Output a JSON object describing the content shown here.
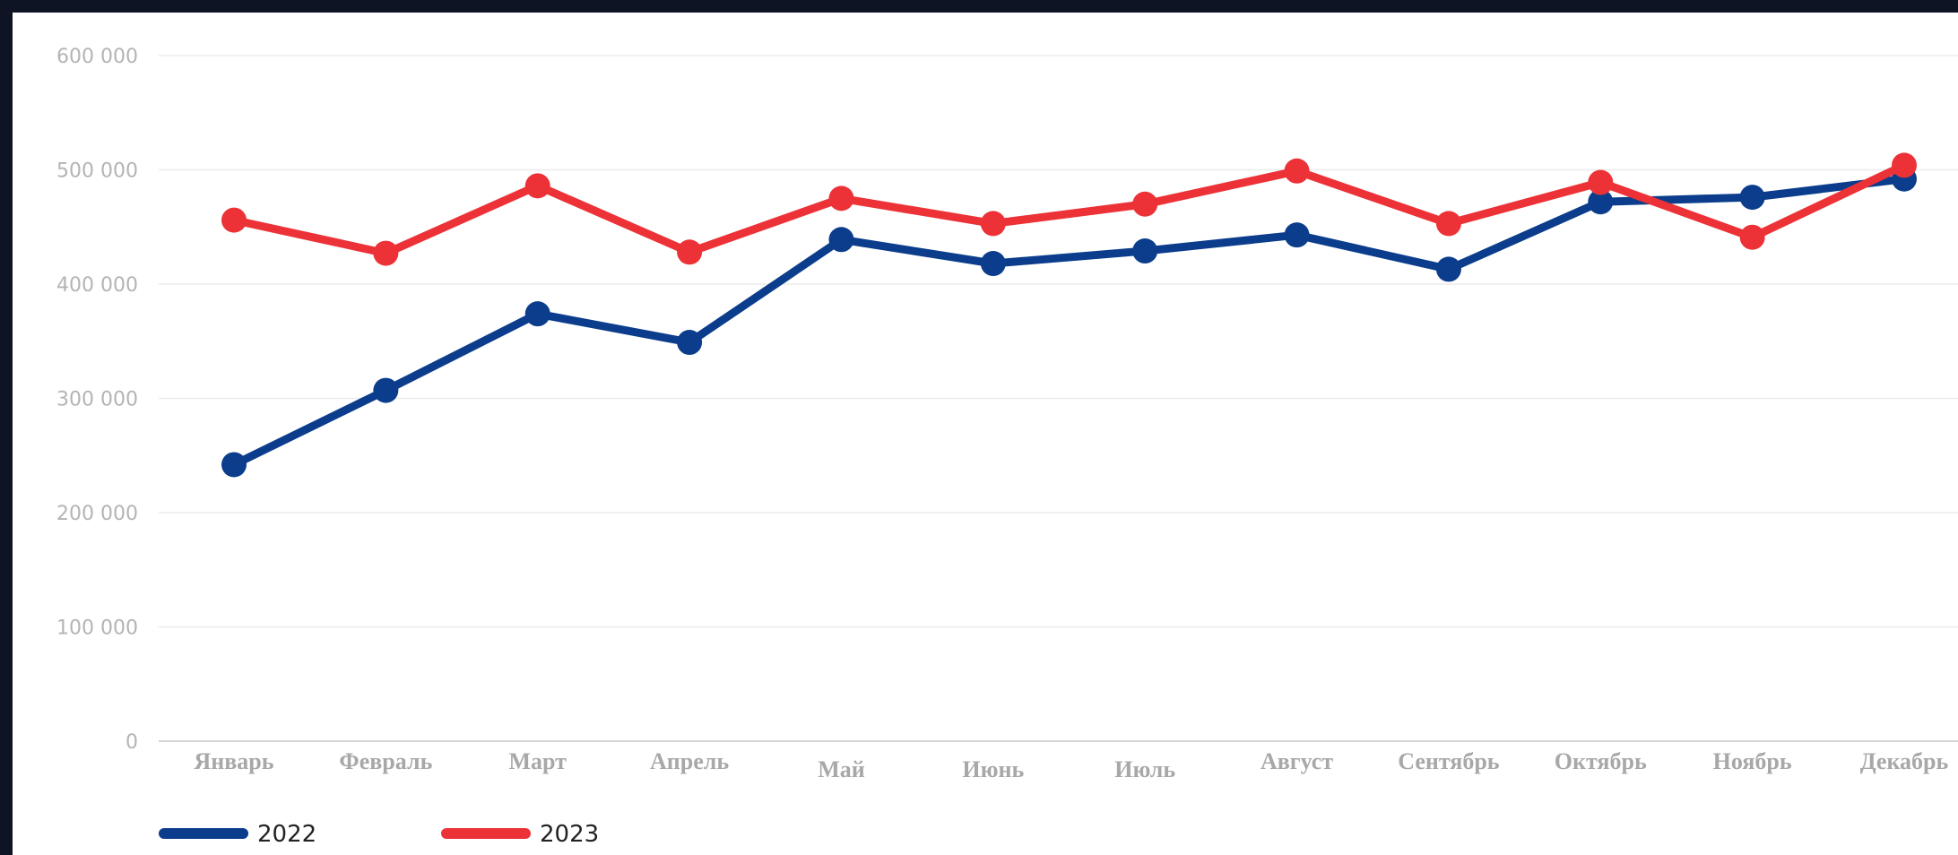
{
  "chart_data": {
    "type": "line",
    "title": "",
    "xlabel": "",
    "ylabel": "",
    "categories": [
      "Январь",
      "Февраль",
      "Март",
      "Апрель",
      "Май",
      "Июнь",
      "Июль",
      "Август",
      "Сентябрь",
      "Октябрь",
      "Ноябрь",
      "Декабрь"
    ],
    "ylim": [
      0,
      600000
    ],
    "yticks": [
      0,
      100000,
      200000,
      300000,
      400000,
      500000,
      600000
    ],
    "ytick_labels": [
      "0",
      "100 000",
      "200 000",
      "300 000",
      "400 000",
      "500 000",
      "600 000"
    ],
    "grid": true,
    "legend_position": "bottom-left",
    "series": [
      {
        "name": "2022",
        "color": "#0b3d8c",
        "values": [
          242000,
          307000,
          374000,
          349000,
          439000,
          418000,
          429000,
          443000,
          413000,
          472000,
          476000,
          492000
        ]
      },
      {
        "name": "2023",
        "color": "#ec3237",
        "values": [
          456000,
          427000,
          486000,
          428000,
          475000,
          453000,
          470000,
          499000,
          453000,
          489000,
          441000,
          504000
        ]
      }
    ]
  }
}
